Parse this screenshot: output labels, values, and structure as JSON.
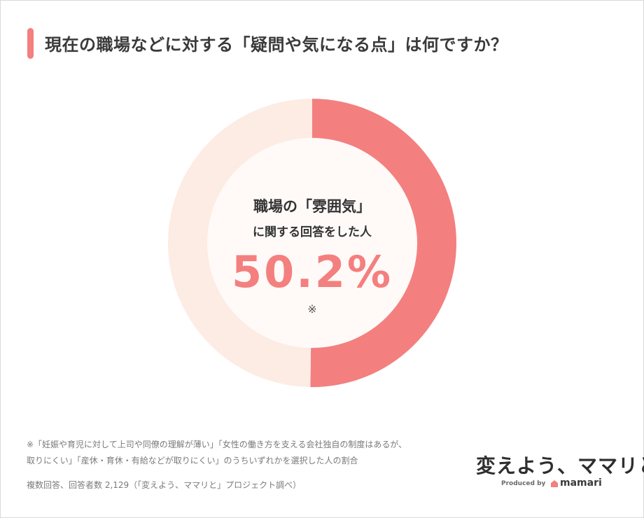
{
  "title": "現在の職場などに対する「疑問や気になる点」は何ですか？",
  "chart_data": {
    "type": "pie",
    "slices": [
      {
        "label": "職場の「雰囲気」に関する回答をした人",
        "value": 50.2,
        "color": "#f47f7f"
      },
      {
        "label": "",
        "value": 49.8,
        "color": "#fdece4"
      }
    ],
    "center": {
      "line1": "職場の「雰囲気」",
      "line2": "に関する回答をした人",
      "value_label": "50.2%",
      "mark": "※"
    }
  },
  "notes": {
    "line1": "※「妊娠や育児に対して上司や同僚の理解が薄い」「女性の働き方を支える会社独自の制度はあるが、",
    "line2": "取りにくい」「産休・育休・有給などが取りにくい」のうちいずれかを選択した人の割合",
    "line3": "複数回答、回答者数 2,129（「変えよう、ママリと」プロジェクト調べ）"
  },
  "logo": {
    "text": "変えよう、ママリと",
    "produced_by": "Produced by",
    "brand": "mamari",
    "brand_icon": "mamari-logo-icon"
  },
  "colors": {
    "accent": "#f47f7f",
    "ring_bg": "#fdece4",
    "center_bg": "#fffaf8"
  }
}
